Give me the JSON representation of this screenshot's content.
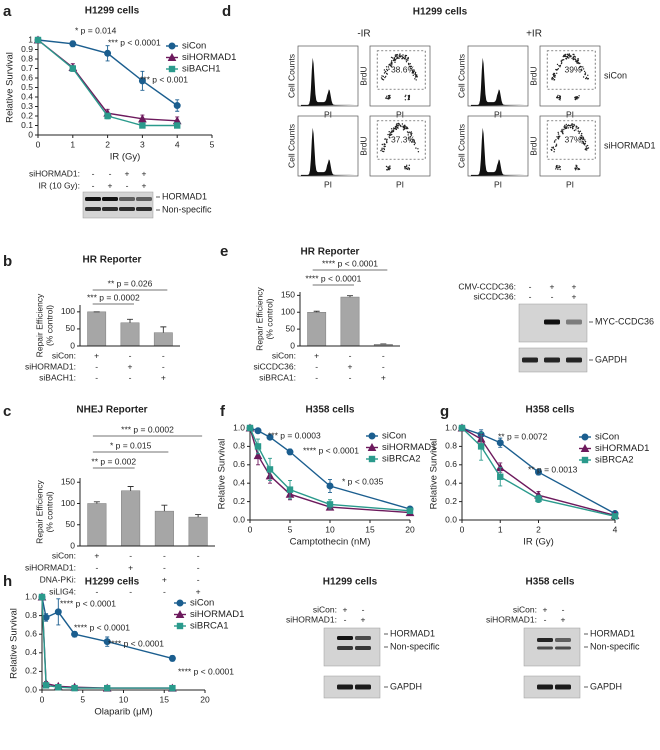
{
  "chart_data": [
    {
      "panel": "a",
      "type": "line",
      "title": "H1299 cells",
      "x_label": "IR (Gy)",
      "y_label": "Relative Survival",
      "x": [
        0,
        1,
        2,
        3,
        4
      ],
      "xlim": [
        0,
        5
      ],
      "xticks": [
        0,
        1,
        2,
        3,
        4,
        5
      ],
      "ylim": [
        0,
        1
      ],
      "yticks": [
        0,
        0.1,
        0.2,
        0.3,
        0.4,
        0.5,
        0.6,
        0.7,
        0.8,
        0.9,
        1
      ],
      "legend": "upper right",
      "series": [
        {
          "name": "siCon",
          "color": "#1b5e8f",
          "marker": "circle",
          "values": [
            1,
            0.96,
            0.86,
            0.57,
            0.31
          ],
          "errors": [
            0,
            0.03,
            0.08,
            0.1,
            0.06
          ]
        },
        {
          "name": "siHORMAD1",
          "color": "#6d1a5d",
          "marker": "triangle",
          "values": [
            1,
            0.71,
            0.23,
            0.17,
            0.15
          ],
          "errors": [
            0,
            0.04,
            0.04,
            0.04,
            0.04
          ]
        },
        {
          "name": "siBACH1",
          "color": "#2a9a8c",
          "marker": "square",
          "values": [
            1,
            0.7,
            0.2,
            0.1,
            0.1
          ],
          "errors": [
            0,
            0.03,
            0.03,
            0.02,
            0.02
          ]
        }
      ],
      "annotations": [
        "* p = 0.014",
        "*** p < 0.0001",
        "*** p < 0.001"
      ]
    },
    {
      "panel": "b",
      "type": "bar",
      "title": "HR Reporter",
      "y_label": [
        "Repair Efficiency",
        "(% control)"
      ],
      "values": [
        100,
        68,
        39
      ],
      "errors": [
        0,
        10,
        17
      ],
      "color": "#a6a6a6",
      "ylim": [
        0,
        120
      ],
      "yticks": [
        0,
        50,
        100
      ],
      "conditions": [
        {
          "label": "siCon:",
          "signs": [
            "+",
            "-",
            "-"
          ]
        },
        {
          "label": "siHORMAD1:",
          "signs": [
            "-",
            "+",
            "-"
          ]
        },
        {
          "label": "siBACH1:",
          "signs": [
            "-",
            "-",
            "+"
          ]
        }
      ],
      "annotations": [
        "** p = 0.026",
        "*** p = 0.0002"
      ]
    },
    {
      "panel": "c",
      "type": "bar",
      "title": "NHEJ Reporter",
      "y_label": [
        "Repair Efficiency",
        "(% control)"
      ],
      "values": [
        100,
        130,
        82,
        68
      ],
      "errors": [
        4,
        10,
        14,
        6
      ],
      "color": "#a6a6a6",
      "ylim": [
        0,
        160
      ],
      "yticks": [
        0,
        50,
        100,
        150
      ],
      "conditions": [
        {
          "label": "siCon:",
          "signs": [
            "+",
            "-",
            "-",
            "-"
          ]
        },
        {
          "label": "siHORMAD1:",
          "signs": [
            "-",
            "+",
            "-",
            "-"
          ]
        },
        {
          "label": "DNA-PKi:",
          "signs": [
            "-",
            "-",
            "+",
            "-"
          ]
        },
        {
          "label": "siLIG4:",
          "signs": [
            "-",
            "-",
            "-",
            "+"
          ]
        }
      ],
      "annotations": [
        "*** p = 0.0002",
        "* p = 0.015",
        "** p = 0.002"
      ]
    },
    {
      "panel": "e",
      "type": "bar",
      "title": "HR Reporter",
      "y_label": [
        "Repair Efficiency",
        "(% control)"
      ],
      "values": [
        100,
        145,
        5
      ],
      "errors": [
        3,
        4,
        1
      ],
      "color": "#a6a6a6",
      "ylim": [
        0,
        160
      ],
      "yticks": [
        0,
        50,
        100,
        150
      ],
      "conditions": [
        {
          "label": "siCon:",
          "signs": [
            "+",
            "-",
            "-"
          ]
        },
        {
          "label": "siCCDC36:",
          "signs": [
            "-",
            "+",
            "-"
          ]
        },
        {
          "label": "siBRCA1:",
          "signs": [
            "-",
            "-",
            "+"
          ]
        }
      ],
      "annotations": [
        "**** p < 0.0001",
        "**** p < 0.0001"
      ]
    },
    {
      "panel": "f",
      "type": "line",
      "title": "H358 cells",
      "x_label": "Camptothecin (nM)",
      "y_label": "Relative Survival",
      "x": [
        0,
        1,
        2.5,
        5,
        10,
        20
      ],
      "xlim": [
        0,
        20
      ],
      "xticks": [
        0,
        5,
        10,
        15,
        20
      ],
      "ylim": [
        0,
        1
      ],
      "yticks": [
        {
          "value": 0,
          "label": "0.0"
        },
        0.2,
        0.4,
        0.6,
        0.8,
        {
          "value": 1,
          "label": "1.0"
        }
      ],
      "legend": "upper right",
      "series": [
        {
          "name": "siCon",
          "color": "#1b5e8f",
          "marker": "circle",
          "values": [
            1,
            0.97,
            0.9,
            0.74,
            0.37,
            0.12
          ],
          "errors": [
            0,
            0.02,
            0.02,
            0.03,
            0.07,
            0.02
          ]
        },
        {
          "name": "siHORMAD1",
          "color": "#6d1a5d",
          "marker": "triangle",
          "values": [
            1,
            0.7,
            0.48,
            0.28,
            0.14,
            0.08
          ],
          "errors": [
            0,
            0.1,
            0.08,
            0.06,
            0.03,
            0.02
          ]
        },
        {
          "name": "siBRCA2",
          "color": "#2a9a8c",
          "marker": "square",
          "values": [
            1,
            0.8,
            0.55,
            0.33,
            0.17,
            0.1
          ],
          "errors": [
            0,
            0.08,
            0.12,
            0.1,
            0.05,
            0.02
          ]
        }
      ],
      "annotations": [
        "*** p = 0.0003",
        "**** p < 0.0001",
        "* p < 0.035"
      ]
    },
    {
      "panel": "g",
      "type": "line",
      "title": "H358 cells",
      "x_label": "IR (Gy)",
      "y_label": "Relative Survival",
      "x": [
        0,
        0.5,
        1,
        2,
        4
      ],
      "xlim": [
        0,
        4
      ],
      "xticks": [
        0,
        1,
        2,
        4
      ],
      "ylim": [
        0,
        1
      ],
      "yticks": [
        {
          "value": 0,
          "label": "0.0"
        },
        0.2,
        0.4,
        0.6,
        0.8,
        {
          "value": 1,
          "label": "1.0"
        }
      ],
      "legend": "upper right",
      "series": [
        {
          "name": "siCon",
          "color": "#1b5e8f",
          "marker": "circle",
          "values": [
            1,
            0.93,
            0.84,
            0.52,
            0.07
          ],
          "errors": [
            0,
            0.05,
            0.05,
            0.03,
            0.02
          ]
        },
        {
          "name": "siHORMAD1",
          "color": "#6d1a5d",
          "marker": "triangle",
          "values": [
            1,
            0.88,
            0.57,
            0.27,
            0.05
          ],
          "errors": [
            0,
            0.05,
            0.05,
            0.04,
            0.02
          ]
        },
        {
          "name": "siBRCA2",
          "color": "#2a9a8c",
          "marker": "square",
          "values": [
            1,
            0.8,
            0.47,
            0.23,
            0.04
          ],
          "errors": [
            0,
            0.15,
            0.1,
            0.04,
            0.02
          ]
        }
      ],
      "annotations": [
        "** p = 0.0072",
        "** p = 0.0013"
      ]
    },
    {
      "panel": "h",
      "type": "line",
      "title": "H1299 cells",
      "x_label": "Olaparib (μM)",
      "y_label": "Relative Survival",
      "x": [
        0,
        0.5,
        2,
        4,
        8,
        16
      ],
      "xlim": [
        0,
        20
      ],
      "xticks": [
        0,
        5,
        10,
        15,
        20
      ],
      "ylim": [
        0,
        1
      ],
      "yticks": [
        {
          "value": 0,
          "label": "0.0"
        },
        0.2,
        0.4,
        0.6,
        0.8,
        {
          "value": 1,
          "label": "1.0"
        }
      ],
      "legend": "upper right",
      "series": [
        {
          "name": "siCon",
          "color": "#1b5e8f",
          "marker": "circle",
          "values": [
            1,
            0.78,
            0.84,
            0.6,
            0.52,
            0.34
          ],
          "errors": [
            0,
            0.04,
            0.14,
            0.03,
            0.05,
            0.03
          ]
        },
        {
          "name": "siHORMAD1",
          "color": "#6d1a5d",
          "marker": "triangle",
          "values": [
            1,
            0.07,
            0.04,
            0.03,
            0.02,
            0.02
          ],
          "errors": [
            0,
            0.02,
            0.01,
            0.01,
            0.01,
            0.01
          ]
        },
        {
          "name": "siBRCA1",
          "color": "#2a9a8c",
          "marker": "square",
          "values": [
            1,
            0.05,
            0.03,
            0.02,
            0.02,
            0.02
          ],
          "errors": [
            0,
            0.02,
            0.01,
            0.01,
            0.01,
            0.01
          ]
        }
      ],
      "annotations": [
        "**** p < 0.0001",
        "**** p < 0.0001",
        "**** p < 0.0001",
        "**** p < 0.0001"
      ]
    }
  ],
  "flow": {
    "panel": "d",
    "title": "H1299 cells",
    "conditions": [
      "-IR",
      "+IR"
    ],
    "rows": [
      "siCon",
      "siHORMAD1"
    ],
    "histogram_y_label": "Cell Counts",
    "dot_y_label": "BrdU",
    "x_label": "PI",
    "percentages": [
      [
        "38.6%",
        "39%"
      ],
      [
        "37.3%",
        "37%"
      ]
    ]
  },
  "blots": [
    {
      "rows": [
        {
          "label": "siHORMAD1:",
          "signs": [
            "-",
            "-",
            "+",
            "+"
          ]
        },
        {
          "label": "IR (10 Gy):",
          "signs": [
            "-",
            "+",
            "-",
            "+"
          ]
        }
      ],
      "bands": [
        "HORMAD1",
        "Non-specific"
      ]
    },
    {
      "rows": [
        {
          "label": "CMV-CCDC36:",
          "signs": [
            "-",
            "+",
            "+"
          ]
        },
        {
          "label": "siCCDC36:",
          "signs": [
            "-",
            "-",
            "+"
          ]
        }
      ],
      "bands": [
        "MYC-CCDC36",
        "GAPDH"
      ]
    },
    {
      "title": "H1299 cells",
      "rows": [
        {
          "label": "siCon:",
          "signs": [
            "+",
            "-"
          ]
        },
        {
          "label": "siHORMAD1:",
          "signs": [
            "-",
            "+"
          ]
        }
      ],
      "bands": [
        "HORMAD1",
        "Non-specific",
        "GAPDH"
      ]
    },
    {
      "title": "H358 cells",
      "rows": [
        {
          "label": "siCon:",
          "signs": [
            "+",
            "-"
          ]
        },
        {
          "label": "siHORMAD1:",
          "signs": [
            "-",
            "+"
          ]
        }
      ],
      "bands": [
        "HORMAD1",
        "Non-specific",
        "GAPDH"
      ]
    }
  ]
}
